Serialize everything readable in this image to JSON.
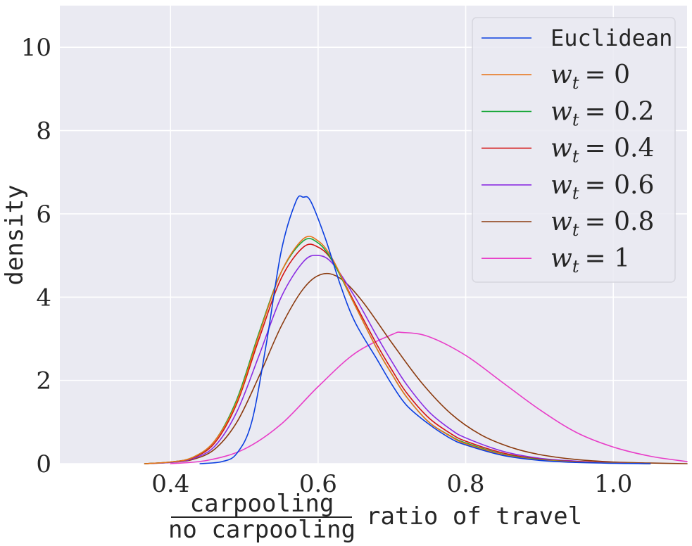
{
  "chart_data": {
    "type": "line",
    "title": "",
    "xlabel": {
      "numerator": "carpooling",
      "denominator": "no carpooling",
      "suffix": "ratio of travel"
    },
    "ylabel": "density",
    "xlim": [
      0.25,
      1.1
    ],
    "ylim": [
      0,
      11
    ],
    "xticks": [
      0.4,
      0.6,
      0.8,
      1.0
    ],
    "xtick_labels": [
      "0.4",
      "0.6",
      "0.8",
      "1.0"
    ],
    "yticks": [
      0,
      2,
      4,
      6,
      8,
      10
    ],
    "ytick_labels": [
      "0",
      "2",
      "4",
      "6",
      "8",
      "10"
    ],
    "grid": true,
    "legend_position": "top-right",
    "series": [
      {
        "name": "Euclidean",
        "legend": {
          "kind": "mono",
          "text": "Euclidean"
        },
        "color": "#0b3fe0",
        "x": [
          0.44,
          0.47,
          0.49,
          0.51,
          0.53,
          0.55,
          0.57,
          0.58,
          0.59,
          0.61,
          0.63,
          0.65,
          0.68,
          0.7,
          0.72,
          0.75,
          0.78,
          0.8,
          0.85,
          0.9,
          0.95,
          1.0,
          1.05
        ],
        "y": [
          0.0,
          0.05,
          0.25,
          1.0,
          2.9,
          5.1,
          6.3,
          6.4,
          6.3,
          5.4,
          4.3,
          3.4,
          2.5,
          1.9,
          1.4,
          0.95,
          0.6,
          0.45,
          0.2,
          0.08,
          0.03,
          0.01,
          0.0
        ]
      },
      {
        "name": "w_t = 0",
        "legend": {
          "kind": "math",
          "rhs": "0"
        },
        "color": "#e8731a",
        "x": [
          0.365,
          0.4,
          0.43,
          0.46,
          0.49,
          0.52,
          0.55,
          0.58,
          0.6,
          0.62,
          0.65,
          0.68,
          0.7,
          0.72,
          0.75,
          0.78,
          0.8,
          0.85,
          0.9,
          0.95,
          1.0,
          1.05
        ],
        "y": [
          0.0,
          0.04,
          0.15,
          0.55,
          1.5,
          3.1,
          4.6,
          5.4,
          5.35,
          4.9,
          3.8,
          2.75,
          2.15,
          1.6,
          1.0,
          0.65,
          0.48,
          0.22,
          0.09,
          0.04,
          0.015,
          0.0
        ]
      },
      {
        "name": "w_t = 0.2",
        "legend": {
          "kind": "math",
          "rhs": "0.2"
        },
        "color": "#1aa83a",
        "x": [
          0.365,
          0.4,
          0.43,
          0.46,
          0.49,
          0.52,
          0.55,
          0.58,
          0.6,
          0.62,
          0.65,
          0.68,
          0.7,
          0.72,
          0.75,
          0.78,
          0.8,
          0.85,
          0.9,
          0.95,
          1.0,
          1.05
        ],
        "y": [
          0.0,
          0.04,
          0.15,
          0.55,
          1.55,
          3.15,
          4.6,
          5.35,
          5.3,
          4.85,
          3.8,
          2.75,
          2.15,
          1.6,
          1.0,
          0.66,
          0.5,
          0.23,
          0.1,
          0.04,
          0.015,
          0.0
        ]
      },
      {
        "name": "w_t = 0.4",
        "legend": {
          "kind": "math",
          "rhs": "0.4"
        },
        "color": "#d41414",
        "x": [
          0.365,
          0.4,
          0.43,
          0.46,
          0.49,
          0.52,
          0.55,
          0.58,
          0.6,
          0.62,
          0.65,
          0.68,
          0.7,
          0.72,
          0.75,
          0.78,
          0.8,
          0.85,
          0.9,
          0.95,
          1.0,
          1.05
        ],
        "y": [
          0.0,
          0.04,
          0.14,
          0.5,
          1.45,
          3.0,
          4.45,
          5.2,
          5.2,
          4.85,
          3.85,
          2.85,
          2.25,
          1.7,
          1.1,
          0.72,
          0.54,
          0.26,
          0.11,
          0.05,
          0.02,
          0.0
        ]
      },
      {
        "name": "w_t = 0.6",
        "legend": {
          "kind": "math",
          "rhs": "0.6"
        },
        "color": "#8a2be2",
        "x": [
          0.365,
          0.4,
          0.43,
          0.46,
          0.49,
          0.52,
          0.55,
          0.58,
          0.6,
          0.62,
          0.65,
          0.68,
          0.7,
          0.72,
          0.75,
          0.78,
          0.8,
          0.85,
          0.9,
          0.95,
          1.0,
          1.05
        ],
        "y": [
          0.0,
          0.03,
          0.12,
          0.42,
          1.25,
          2.6,
          4.0,
          4.85,
          5.0,
          4.8,
          4.0,
          3.05,
          2.45,
          1.9,
          1.25,
          0.82,
          0.62,
          0.3,
          0.13,
          0.06,
          0.02,
          0.0
        ]
      },
      {
        "name": "w_t = 0.8",
        "legend": {
          "kind": "math",
          "rhs": "0.8"
        },
        "color": "#8b3a0e",
        "x": [
          0.365,
          0.4,
          0.43,
          0.46,
          0.49,
          0.52,
          0.55,
          0.58,
          0.605,
          0.63,
          0.66,
          0.7,
          0.74,
          0.78,
          0.82,
          0.86,
          0.9,
          0.95,
          1.0,
          1.05,
          1.1
        ],
        "y": [
          0.0,
          0.03,
          0.1,
          0.35,
          1.0,
          2.1,
          3.3,
          4.2,
          4.55,
          4.45,
          3.9,
          2.9,
          1.95,
          1.2,
          0.7,
          0.4,
          0.22,
          0.1,
          0.04,
          0.015,
          0.0
        ]
      },
      {
        "name": "w_t = 1",
        "legend": {
          "kind": "math",
          "rhs": "1"
        },
        "color": "#e83ec8",
        "x": [
          0.4,
          0.45,
          0.5,
          0.55,
          0.6,
          0.65,
          0.7,
          0.715,
          0.75,
          0.8,
          0.85,
          0.9,
          0.95,
          1.0,
          1.05,
          1.1
        ],
        "y": [
          0.0,
          0.08,
          0.35,
          0.95,
          1.85,
          2.65,
          3.1,
          3.15,
          3.05,
          2.6,
          1.95,
          1.3,
          0.75,
          0.4,
          0.18,
          0.05
        ]
      }
    ]
  }
}
